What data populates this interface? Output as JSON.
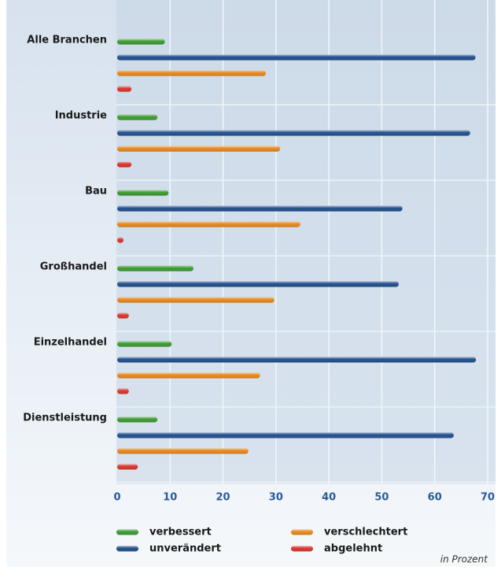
{
  "chart_data": {
    "type": "hbar",
    "categories": [
      "Alle Branchen",
      "Industrie",
      "Bau",
      "Großhandel",
      "Einzelhandel",
      "Dienstleistung"
    ],
    "series": [
      {
        "name": "verbessert",
        "color": "#3a9a2f",
        "values": [
          9.0,
          7.6,
          9.7,
          14.4,
          10.3,
          7.6
        ]
      },
      {
        "name": "unverändert",
        "color": "#1f4e8c",
        "values": [
          67.7,
          66.7,
          53.9,
          53.2,
          67.8,
          63.6
        ]
      },
      {
        "name": "verschlechtert",
        "color": "#e8861a",
        "values": [
          28.1,
          30.8,
          34.6,
          29.7,
          27.0,
          24.8
        ]
      },
      {
        "name": "abgelehnt",
        "color": "#d9332a",
        "values": [
          2.7,
          2.7,
          1.2,
          2.2,
          2.2,
          3.9
        ]
      }
    ],
    "xlim": [
      0,
      70
    ],
    "xticks": [
      0,
      10,
      20,
      30,
      40,
      50,
      60,
      70
    ],
    "grid": true,
    "unit_label": "in Prozent"
  }
}
